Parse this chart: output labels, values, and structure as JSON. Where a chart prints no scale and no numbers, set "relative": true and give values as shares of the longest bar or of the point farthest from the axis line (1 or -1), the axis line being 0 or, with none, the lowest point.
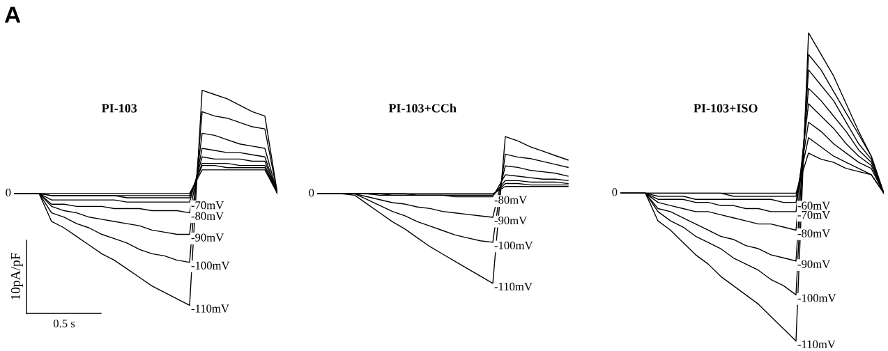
{
  "chart_data": [
    {
      "type": "line",
      "title": "PI-103",
      "relative": true,
      "categories": [
        null,
        null,
        null,
        null,
        null,
        null,
        null,
        null,
        null,
        null,
        null,
        null,
        null,
        null,
        null,
        null,
        null,
        null,
        null,
        null,
        null,
        null
      ],
      "series": [
        {
          "color": "#000000",
          "values": [
            0.52,
            0.52,
            0.52,
            0.52,
            0.52,
            0.52,
            0.52,
            0.52,
            0.52,
            0.52,
            0.52,
            0.52,
            0.52,
            0.52,
            0.52,
            0.63,
            0.63,
            0.63,
            0.63,
            0.63,
            0.63,
            0.52
          ]
        },
        {
          "color": "#000000",
          "values": [
            0.52,
            0.52,
            0.52,
            0.51,
            0.51,
            0.51,
            0.51,
            0.51,
            0.51,
            0.51,
            0.51,
            0.51,
            0.51,
            0.51,
            0.51,
            0.65,
            0.65,
            0.64,
            0.64,
            0.64,
            0.64,
            0.52
          ]
        },
        {
          "color": "#000000",
          "values": [
            0.52,
            0.52,
            0.52,
            0.51,
            0.51,
            0.51,
            0.51,
            0.51,
            0.51,
            0.5,
            0.5,
            0.5,
            0.5,
            0.5,
            0.5,
            0.66,
            0.66,
            0.66,
            0.65,
            0.65,
            0.65,
            0.52
          ]
        },
        {
          "name": "-70mV",
          "color": "#000000",
          "values": [
            0.52,
            0.52,
            0.52,
            0.49,
            0.49,
            0.49,
            0.49,
            0.49,
            0.49,
            0.48,
            0.48,
            0.48,
            0.48,
            0.48,
            0.48,
            0.69,
            0.68,
            0.68,
            0.68,
            0.67,
            0.67,
            0.52
          ]
        },
        {
          "name": "-80mV",
          "color": "#000000",
          "values": [
            0.52,
            0.52,
            0.52,
            0.47,
            0.47,
            0.46,
            0.46,
            0.46,
            0.45,
            0.45,
            0.45,
            0.44,
            0.44,
            0.44,
            0.43,
            0.73,
            0.72,
            0.71,
            0.71,
            0.7,
            0.69,
            0.52
          ]
        },
        {
          "name": "-90mV",
          "color": "#000000",
          "values": [
            0.52,
            0.52,
            0.52,
            0.46,
            0.44,
            0.43,
            0.41,
            0.4,
            0.39,
            0.38,
            0.37,
            0.35,
            0.34,
            0.33,
            0.33,
            0.8,
            0.79,
            0.77,
            0.75,
            0.74,
            0.73,
            0.52
          ]
        },
        {
          "name": "-100mV",
          "color": "#000000",
          "values": [
            0.52,
            0.52,
            0.52,
            0.43,
            0.41,
            0.38,
            0.36,
            0.33,
            0.31,
            0.29,
            0.26,
            0.24,
            0.23,
            0.21,
            0.2,
            0.9,
            0.88,
            0.87,
            0.85,
            0.83,
            0.82,
            0.52
          ]
        },
        {
          "name": "-110mV",
          "color": "#000000",
          "values": [
            0.52,
            0.52,
            0.52,
            0.39,
            0.36,
            0.32,
            0.28,
            0.24,
            0.21,
            0.17,
            0.13,
            0.09,
            0.06,
            0.03,
            0,
            1.0,
            0.98,
            0.96,
            0.93,
            0.9,
            0.88,
            0.52
          ]
        }
      ],
      "annotations": [
        "0",
        "10pA/pF",
        "0.5 s",
        "A"
      ]
    },
    {
      "type": "line",
      "title": "PI-103+CCh",
      "relative": true,
      "categories": [
        null,
        null,
        null,
        null,
        null,
        null,
        null,
        null,
        null,
        null,
        null,
        null,
        null,
        null,
        null,
        null,
        null,
        null,
        null,
        null,
        null,
        null
      ],
      "series": [
        {
          "color": "#000000",
          "values": [
            0.61,
            0.61,
            0.61,
            0.61,
            0.61,
            0.61,
            0.61,
            0.61,
            0.61,
            0.61,
            0.61,
            0.61,
            0.61,
            0.61,
            0.61,
            0.66,
            0.66,
            0.66,
            0.66,
            0.66,
            0.66,
            null
          ]
        },
        {
          "color": "#000000",
          "values": [
            0.61,
            0.61,
            0.61,
            0.61,
            0.61,
            0.61,
            0.61,
            0.61,
            0.6,
            0.6,
            0.6,
            0.6,
            0.6,
            0.6,
            0.6,
            0.68,
            0.68,
            0.67,
            0.67,
            0.67,
            0.67,
            null
          ]
        },
        {
          "color": "#000000",
          "values": [
            0.61,
            0.61,
            0.61,
            0.61,
            0.61,
            0.6,
            0.6,
            0.6,
            0.6,
            0.6,
            0.6,
            0.6,
            0.6,
            0.6,
            0.6,
            0.7,
            0.7,
            0.69,
            0.69,
            0.69,
            0.68,
            null
          ]
        },
        {
          "name": "-80mV",
          "color": "#000000",
          "values": [
            0.61,
            0.61,
            0.61,
            0.61,
            0.61,
            0.61,
            0.6,
            0.6,
            0.6,
            0.6,
            0.6,
            0.59,
            0.59,
            0.59,
            0.59,
            0.74,
            0.73,
            0.72,
            0.71,
            0.71,
            0.7,
            null
          ]
        },
        {
          "name": "-90mV",
          "color": "#000000",
          "values": [
            0.61,
            0.61,
            0.61,
            0.61,
            0.59,
            0.57,
            0.55,
            0.54,
            0.52,
            0.51,
            0.49,
            0.48,
            0.47,
            0.46,
            0.45,
            0.8,
            0.79,
            0.77,
            0.76,
            0.75,
            0.73,
            null
          ]
        },
        {
          "name": "-100mV",
          "color": "#000000",
          "values": [
            0.61,
            0.61,
            0.61,
            0.61,
            0.57,
            0.53,
            0.49,
            0.46,
            0.42,
            0.39,
            0.36,
            0.33,
            0.31,
            0.29,
            0.28,
            0.88,
            0.86,
            0.85,
            0.83,
            0.81,
            0.79,
            null
          ]
        },
        {
          "name": "-110mV",
          "color": "#000000",
          "values": [
            0.61,
            0.61,
            0.61,
            0.6,
            0.54,
            0.48,
            0.42,
            0.37,
            0.31,
            0.25,
            0.2,
            0.15,
            0.1,
            0.05,
            0,
            1.0,
            0.97,
            0.93,
            0.9,
            0.87,
            0.84,
            null
          ]
        }
      ],
      "annotations": [
        "0"
      ]
    },
    {
      "type": "line",
      "title": "PI-103+ISO",
      "relative": true,
      "categories": [
        null,
        null,
        null,
        null,
        null,
        null,
        null,
        null,
        null,
        null,
        null,
        null,
        null,
        null,
        null,
        null,
        null,
        null,
        null,
        null,
        null,
        null
      ],
      "series": [
        {
          "color": "#000000",
          "values": [
            0.48,
            0.48,
            0.48,
            0.48,
            0.48,
            0.48,
            0.48,
            0.48,
            0.48,
            0.48,
            0.48,
            0.48,
            0.48,
            0.48,
            0.48,
            0.61,
            0.59,
            0.58,
            0.56,
            0.55,
            0.54,
            0.48
          ]
        },
        {
          "color": "#000000",
          "values": [
            0.48,
            0.48,
            0.48,
            0.48,
            0.48,
            0.48,
            0.48,
            0.48,
            0.48,
            0.47,
            0.47,
            0.47,
            0.47,
            0.47,
            0.47,
            0.66,
            0.63,
            0.6,
            0.58,
            0.56,
            0.54,
            0.48
          ]
        },
        {
          "name": "-60mV",
          "color": "#000000",
          "values": [
            0.48,
            0.48,
            0.48,
            0.47,
            0.47,
            0.47,
            0.46,
            0.46,
            0.46,
            0.46,
            0.46,
            0.46,
            0.46,
            0.45,
            0.45,
            0.71,
            0.68,
            0.64,
            0.61,
            0.58,
            0.56,
            0.48
          ]
        },
        {
          "name": "-70mV",
          "color": "#000000",
          "values": [
            0.48,
            0.48,
            0.48,
            0.46,
            0.46,
            0.46,
            0.45,
            0.45,
            0.44,
            0.44,
            0.43,
            0.43,
            0.42,
            0.42,
            0.42,
            0.77,
            0.73,
            0.69,
            0.64,
            0.6,
            0.57,
            0.48
          ]
        },
        {
          "name": "-80mV",
          "color": "#000000",
          "values": [
            0.48,
            0.48,
            0.48,
            0.45,
            0.44,
            0.43,
            0.42,
            0.42,
            0.41,
            0.4,
            0.39,
            0.38,
            0.38,
            0.37,
            0.36,
            0.82,
            0.78,
            0.73,
            0.68,
            0.62,
            0.58,
            0.48
          ]
        },
        {
          "name": "-90mV",
          "color": "#000000",
          "values": [
            0.48,
            0.48,
            0.48,
            0.43,
            0.42,
            0.4,
            0.38,
            0.36,
            0.34,
            0.33,
            0.31,
            0.3,
            0.28,
            0.27,
            0.26,
            0.88,
            0.83,
            0.78,
            0.71,
            0.64,
            0.59,
            0.48
          ]
        },
        {
          "name": "-100mV",
          "color": "#000000",
          "values": [
            0.48,
            0.48,
            0.48,
            0.42,
            0.39,
            0.37,
            0.34,
            0.32,
            0.3,
            0.27,
            0.25,
            0.23,
            0.2,
            0.18,
            0.15,
            0.93,
            0.88,
            0.81,
            0.74,
            0.67,
            0.6,
            0.48
          ]
        },
        {
          "name": "-110mV",
          "color": "#000000",
          "values": [
            0.48,
            0.48,
            0.48,
            0.39,
            0.36,
            0.32,
            0.28,
            0.25,
            0.21,
            0.18,
            0.15,
            0.12,
            0.08,
            0.04,
            0,
            1.0,
            0.93,
            0.86,
            0.77,
            0.68,
            0.6,
            0.48
          ]
        }
      ],
      "annotations": [
        "0"
      ]
    }
  ]
}
